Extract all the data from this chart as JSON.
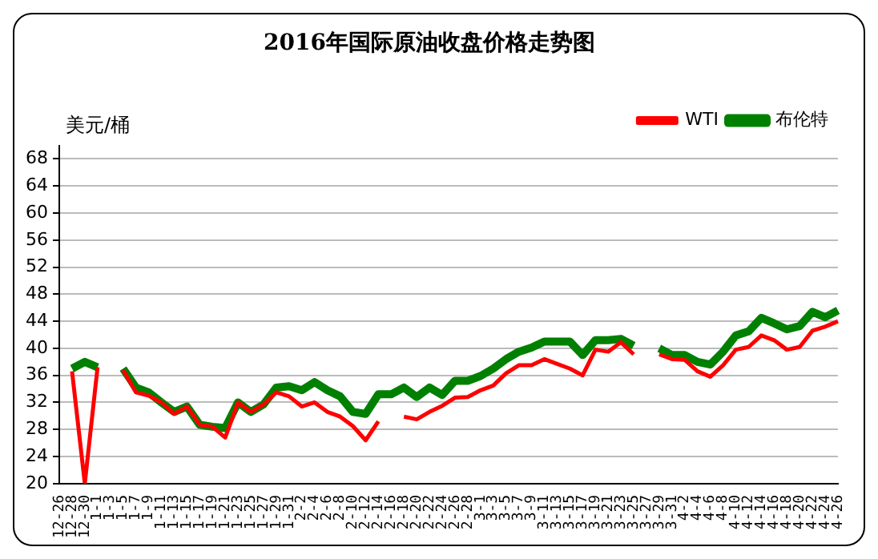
{
  "chart_data": {
    "type": "line",
    "title": "2016年国际原油收盘价格走势图",
    "ylabel": "美元/桶",
    "categories": [
      "12-26",
      "12-28",
      "12-30",
      "1-1",
      "1-3",
      "1-5",
      "1-7",
      "1-9",
      "1-11",
      "1-13",
      "1-15",
      "1-17",
      "1-19",
      "1-21",
      "1-23",
      "1-25",
      "1-27",
      "1-29",
      "1-31",
      "2-2",
      "2-4",
      "2-6",
      "2-8",
      "2-10",
      "2-12",
      "2-14",
      "2-16",
      "2-18",
      "2-20",
      "2-22",
      "2-24",
      "2-26",
      "2-28",
      "3-1",
      "3-3",
      "3-5",
      "3-7",
      "3-9",
      "3-11",
      "3-13",
      "3-15",
      "3-17",
      "3-19",
      "3-21",
      "3-23",
      "3-25",
      "3-27",
      "3-29",
      "3-31",
      "4-2",
      "4-4",
      "4-6",
      "4-8",
      "4-10",
      "4-12",
      "4-14",
      "4-16",
      "4-18",
      "4-20",
      "4-22",
      "4-24",
      "4-26"
    ],
    "series": [
      {
        "name": "WTI",
        "color": "#ff0000",
        "values": [
          null,
          36.6,
          20,
          37.2,
          null,
          36.8,
          33.5,
          33,
          32,
          30.3,
          31.4,
          28.7,
          28.4,
          26.8,
          32,
          30.6,
          31.7,
          33.5,
          32.9,
          31.4,
          32,
          30.6,
          29.9,
          28.5,
          26.4,
          29.2,
          null,
          29.9,
          29.5,
          30.6,
          31.5,
          32.7,
          32.8,
          33.8,
          34.5,
          36.3,
          37.5,
          37.5,
          38.4,
          37.7,
          37,
          36,
          39.8,
          39.5,
          40.9,
          39.1,
          null,
          39.1,
          38.4,
          38.3,
          36.6,
          35.8,
          37.5,
          39.8,
          40.2,
          41.9,
          41.2,
          39.8,
          40.2,
          42.6,
          43.2,
          44
        ]
      },
      {
        "name": "布伦特",
        "color": "#008000",
        "values": [
          null,
          37,
          38,
          37.2,
          null,
          37,
          34.2,
          33.5,
          32,
          30.6,
          31.4,
          28.7,
          28.4,
          28.2,
          32,
          30.6,
          31.7,
          34.2,
          34.4,
          33.8,
          35,
          33.8,
          32.9,
          30.6,
          30.3,
          33.2,
          33.2,
          34.2,
          32.8,
          34.2,
          33.1,
          35.2,
          35.2,
          35.9,
          37,
          38.4,
          39.5,
          40.1,
          41,
          41,
          41,
          39,
          41.2,
          41.2,
          41.4,
          40.4,
          null,
          40,
          39,
          39,
          38,
          37.6,
          39.5,
          41.9,
          42.5,
          44.5,
          43.7,
          42.8,
          43.3,
          45.4,
          44.6,
          45.6
        ]
      }
    ],
    "ylim": [
      20,
      70
    ],
    "yticks": [
      20,
      24,
      28,
      32,
      36,
      40,
      44,
      48,
      52,
      56,
      60,
      64,
      68
    ],
    "grid": "y",
    "legend": "top right",
    "marker": "none",
    "line_style": "solid"
  }
}
